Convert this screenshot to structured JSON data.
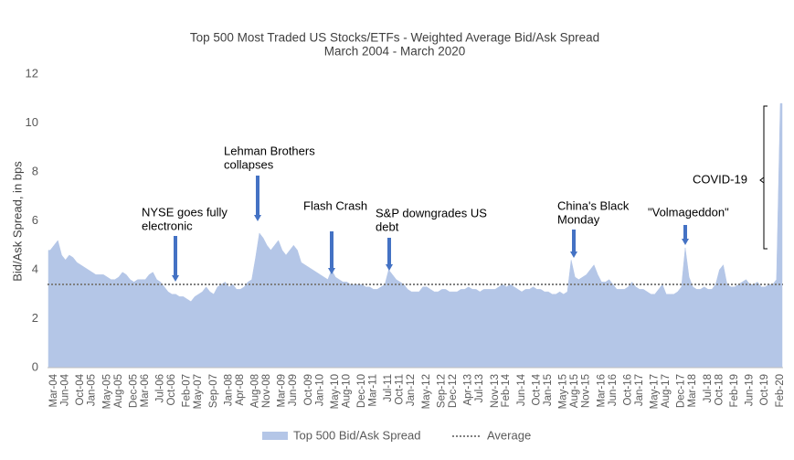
{
  "chart_data": {
    "type": "area",
    "title": "Top 500 Most Traded US Stocks/ETFs - Weighted Average Bid/Ask Spread",
    "subtitle": "March 2004 - March 2020",
    "y_label": "Bid/Ask Spread, in bps",
    "ylim": [
      0,
      12
    ],
    "yticks": [
      0,
      2,
      4,
      6,
      8,
      10,
      12
    ],
    "grid": false,
    "legend": "bottom",
    "categories": [
      "Mar-04",
      null,
      null,
      "Jun-04",
      null,
      null,
      null,
      "Oct-04",
      null,
      null,
      "Jan-05",
      null,
      null,
      null,
      "May-05",
      null,
      null,
      "Aug-05",
      null,
      null,
      null,
      "Dec-05",
      null,
      null,
      "Mar-06",
      null,
      null,
      null,
      "Jul-06",
      null,
      null,
      "Oct-06",
      null,
      null,
      null,
      "Feb-07",
      null,
      null,
      "May-07",
      null,
      null,
      null,
      "Sep-07",
      null,
      null,
      null,
      "Jan-08",
      null,
      null,
      "Apr-08",
      null,
      null,
      null,
      "Aug-08",
      null,
      null,
      "Nov-08",
      null,
      null,
      null,
      "Mar-09",
      null,
      null,
      "Jun-09",
      null,
      null,
      null,
      "Oct-09",
      null,
      null,
      "Jan-10",
      null,
      null,
      null,
      "May-10",
      null,
      null,
      "Aug-10",
      null,
      null,
      null,
      "Dec-10",
      null,
      null,
      "Mar-11",
      null,
      null,
      null,
      "Jul-11",
      null,
      null,
      "Oct-11",
      null,
      null,
      "Jan-12",
      null,
      null,
      null,
      "May-12",
      null,
      null,
      null,
      "Sep-12",
      null,
      null,
      "Dec-12",
      null,
      null,
      null,
      "Apr-13",
      null,
      null,
      "Jul-13",
      null,
      null,
      null,
      "Nov-13",
      null,
      null,
      "Feb-14",
      null,
      null,
      null,
      "Jun-14",
      null,
      null,
      null,
      "Oct-14",
      null,
      null,
      "Jan-15",
      null,
      null,
      null,
      "May-15",
      null,
      null,
      "Aug-15",
      null,
      null,
      "Nov-15",
      null,
      null,
      null,
      "Mar-16",
      null,
      null,
      "Jun-16",
      null,
      null,
      null,
      "Oct-16",
      null,
      null,
      "Jan-17",
      null,
      null,
      null,
      "May-17",
      null,
      null,
      "Aug-17",
      null,
      null,
      null,
      "Dec-17",
      null,
      null,
      "Mar-18",
      null,
      null,
      null,
      "Jul-18",
      null,
      null,
      "Oct-18",
      null,
      null,
      null,
      "Feb-19",
      null,
      null,
      null,
      "Jun-19",
      null,
      null,
      null,
      "Oct-19",
      null,
      null,
      null,
      "Feb-20",
      null
    ],
    "series": [
      {
        "name": "Top 500 Bid/Ask Spread",
        "color": "#b4c6e7",
        "values": [
          4.8,
          5.0,
          5.2,
          4.6,
          4.4,
          4.6,
          4.5,
          4.3,
          4.2,
          4.1,
          4.0,
          3.9,
          3.8,
          3.8,
          3.8,
          3.7,
          3.6,
          3.6,
          3.7,
          3.9,
          3.8,
          3.6,
          3.5,
          3.6,
          3.6,
          3.6,
          3.8,
          3.9,
          3.6,
          3.5,
          3.3,
          3.1,
          3.0,
          3.0,
          2.9,
          2.9,
          2.8,
          2.7,
          2.9,
          3.0,
          3.1,
          3.3,
          3.1,
          3.0,
          3.3,
          3.4,
          3.5,
          3.3,
          3.4,
          3.2,
          3.2,
          3.3,
          3.5,
          3.6,
          4.5,
          5.5,
          5.3,
          5.0,
          4.8,
          5.0,
          5.2,
          4.8,
          4.6,
          4.8,
          5.0,
          4.8,
          4.3,
          4.2,
          4.1,
          4.0,
          3.9,
          3.8,
          3.7,
          3.6,
          4.0,
          3.7,
          3.6,
          3.5,
          3.5,
          3.4,
          3.4,
          3.4,
          3.4,
          3.3,
          3.3,
          3.2,
          3.2,
          3.3,
          3.4,
          4.0,
          3.8,
          3.6,
          3.5,
          3.4,
          3.2,
          3.1,
          3.1,
          3.1,
          3.3,
          3.3,
          3.2,
          3.1,
          3.1,
          3.2,
          3.2,
          3.1,
          3.1,
          3.1,
          3.2,
          3.2,
          3.3,
          3.2,
          3.2,
          3.1,
          3.2,
          3.2,
          3.2,
          3.2,
          3.3,
          3.4,
          3.3,
          3.4,
          3.3,
          3.2,
          3.1,
          3.2,
          3.2,
          3.3,
          3.2,
          3.2,
          3.1,
          3.1,
          3.0,
          3.0,
          3.1,
          3.0,
          3.1,
          4.4,
          3.7,
          3.6,
          3.7,
          3.8,
          4.0,
          4.2,
          3.8,
          3.5,
          3.5,
          3.6,
          3.4,
          3.2,
          3.2,
          3.2,
          3.3,
          3.5,
          3.3,
          3.2,
          3.2,
          3.1,
          3.0,
          3.0,
          3.2,
          3.4,
          3.0,
          3.0,
          3.0,
          3.1,
          3.3,
          4.9,
          3.7,
          3.3,
          3.2,
          3.2,
          3.3,
          3.2,
          3.2,
          3.4,
          4.0,
          4.2,
          3.4,
          3.3,
          3.3,
          3.4,
          3.5,
          3.6,
          3.4,
          3.4,
          3.5,
          3.3,
          3.3,
          3.4,
          3.4,
          3.6,
          10.8
        ]
      }
    ],
    "average": {
      "name": "Average",
      "color": "#7f7f7f",
      "value": 3.4
    },
    "annotations": [
      {
        "lines": [
          "NYSE goes fully",
          "electronic"
        ]
      },
      {
        "lines": [
          "Lehman Brothers",
          "collapses"
        ]
      },
      {
        "lines": [
          "Flash Crash"
        ]
      },
      {
        "lines": [
          "S&P downgrades US",
          "debt"
        ]
      },
      {
        "lines": [
          "China's Black",
          "Monday"
        ]
      },
      {
        "lines": [
          "\"Volmageddon\""
        ]
      },
      {
        "lines": [
          "COVID-19"
        ]
      }
    ],
    "arrow_color": "#4472c4"
  }
}
